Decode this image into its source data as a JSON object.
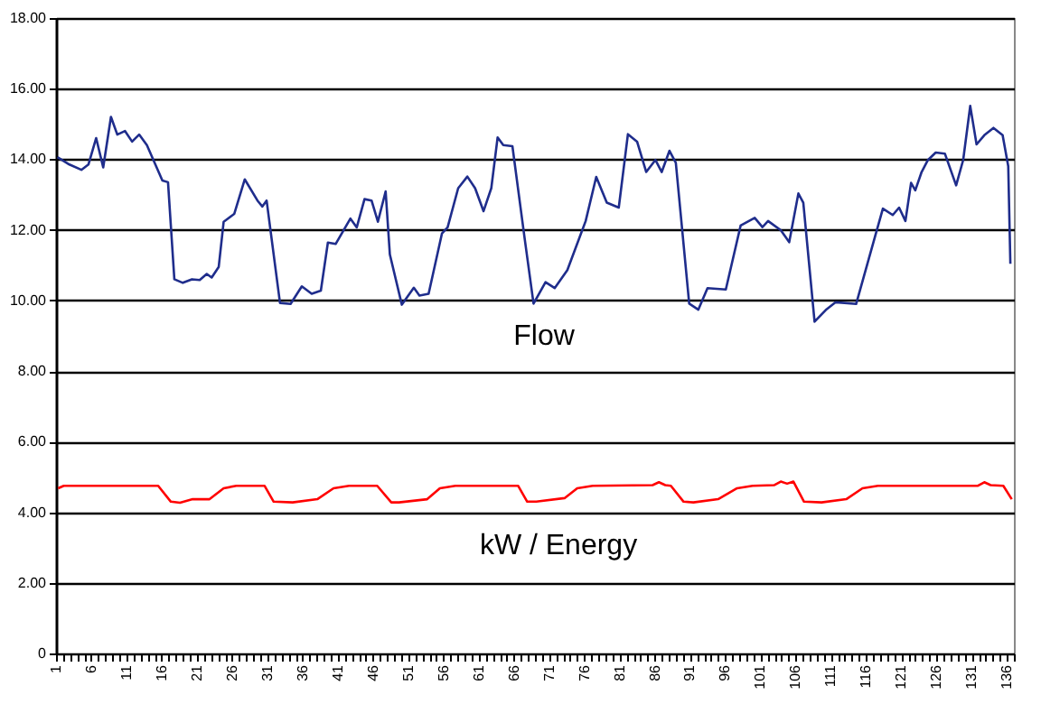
{
  "chart_data": {
    "type": "line",
    "series": [
      {
        "name": "Flow",
        "color": "#1f2d8c",
        "x": [
          1.2,
          2.9,
          4.6,
          5.6,
          6.7,
          7.7,
          8.8,
          9.7,
          10.8,
          11.8,
          12.8,
          13.9,
          16.1,
          16.9,
          17.8,
          19.0,
          20.3,
          21.4,
          22.4,
          23.1,
          24.1,
          24.8,
          26.3,
          27.8,
          29.6,
          30.3,
          30.9,
          32.8,
          34.3,
          35.9,
          37.3,
          38.6,
          39.6,
          40.7,
          42.8,
          43.7,
          44.8,
          45.8,
          46.7,
          47.8,
          48.4,
          50.1,
          51.8,
          52.6,
          53.9,
          55.8,
          56.6,
          58.1,
          59.4,
          60.5,
          61.7,
          62.8,
          63.7,
          64.5,
          65.8,
          67.5,
          68.8,
          70.5,
          71.8,
          73.6,
          76.2,
          77.7,
          79.2,
          80.9,
          82.2,
          83.5,
          84.8,
          86.1,
          87.0,
          88.1,
          89.0,
          90.9,
          92.2,
          93.5,
          96.1,
          98.2,
          100.2,
          101.3,
          102.1,
          103.9,
          105.1,
          106.4,
          107.1,
          108.7,
          110.4,
          111.7,
          114.6,
          117.3,
          118.4,
          119.8,
          120.7,
          121.6,
          122.4,
          123.0,
          123.9,
          124.8,
          125.9,
          127.2,
          128.8,
          129.8,
          130.8,
          131.7,
          132.8,
          134.1,
          135.4,
          136.2,
          136.5
        ],
        "values": [
          14.06,
          13.85,
          13.7,
          13.85,
          14.6,
          13.77,
          15.2,
          14.7,
          14.8,
          14.5,
          14.7,
          14.4,
          13.4,
          13.35,
          10.6,
          10.5,
          10.6,
          10.58,
          10.75,
          10.65,
          10.95,
          12.23,
          12.45,
          13.43,
          12.83,
          12.66,
          12.83,
          9.93,
          9.9,
          10.4,
          10.19,
          10.28,
          11.64,
          11.6,
          12.32,
          12.07,
          12.87,
          12.83,
          12.23,
          13.09,
          11.3,
          9.88,
          10.36,
          10.14,
          10.19,
          11.9,
          12.07,
          13.18,
          13.51,
          13.18,
          12.53,
          13.18,
          14.62,
          14.4,
          14.37,
          11.81,
          9.91,
          10.52,
          10.35,
          10.86,
          12.25,
          13.5,
          12.77,
          12.63,
          14.71,
          14.5,
          13.64,
          13.98,
          13.64,
          14.24,
          13.9,
          9.91,
          9.74,
          10.35,
          10.31,
          12.12,
          12.34,
          12.08,
          12.25,
          11.99,
          11.65,
          13.03,
          12.77,
          9.4,
          9.75,
          9.95,
          9.9,
          11.82,
          12.6,
          12.42,
          12.63,
          12.25,
          13.33,
          13.12,
          13.64,
          13.98,
          14.19,
          14.16,
          13.26,
          13.98,
          15.51,
          14.42,
          14.68,
          14.89,
          14.68,
          13.8,
          11.04
        ]
      },
      {
        "name": "kW / Energy",
        "color": "#ff0000",
        "x": [
          1.3,
          2.1,
          15.5,
          17.3,
          18.6,
          20.4,
          22.8,
          24.8,
          26.6,
          30.6,
          31.9,
          34.6,
          38.1,
          40.4,
          42.6,
          46.6,
          48.6,
          49.7,
          53.7,
          55.5,
          57.7,
          66.6,
          67.9,
          69.2,
          73.2,
          75.0,
          77.2,
          85.7,
          86.6,
          87.5,
          88.3,
          90.1,
          91.5,
          95.0,
          97.7,
          99.9,
          103.0,
          103.9,
          104.8,
          105.7,
          107.2,
          109.7,
          113.2,
          115.5,
          117.7,
          131.9,
          132.8,
          133.7,
          135.5,
          136.7
        ],
        "values": [
          4.68,
          4.75,
          4.75,
          4.3,
          4.27,
          4.37,
          4.37,
          4.68,
          4.75,
          4.75,
          4.3,
          4.28,
          4.37,
          4.68,
          4.75,
          4.75,
          4.28,
          4.28,
          4.37,
          4.68,
          4.75,
          4.75,
          4.3,
          4.3,
          4.4,
          4.68,
          4.75,
          4.77,
          4.85,
          4.77,
          4.75,
          4.3,
          4.28,
          4.37,
          4.68,
          4.75,
          4.77,
          4.87,
          4.81,
          4.87,
          4.3,
          4.28,
          4.37,
          4.68,
          4.75,
          4.75,
          4.85,
          4.77,
          4.75,
          4.37
        ]
      }
    ],
    "xlim": [
      1,
      137
    ],
    "xticks": [
      1,
      {
        "value": 2,
        "label": null
      },
      {
        "value": 3,
        "label": null
      },
      {
        "value": 4,
        "label": null
      },
      {
        "value": 5,
        "label": null
      },
      6,
      {
        "value": 7,
        "label": null
      },
      {
        "value": 8,
        "label": null
      },
      {
        "value": 9,
        "label": null
      },
      {
        "value": 10,
        "label": null
      },
      11,
      {
        "value": 12,
        "label": null
      },
      {
        "value": 13,
        "label": null
      },
      {
        "value": 14,
        "label": null
      },
      {
        "value": 15,
        "label": null
      },
      16,
      {
        "value": 17,
        "label": null
      },
      {
        "value": 18,
        "label": null
      },
      {
        "value": 19,
        "label": null
      },
      {
        "value": 20,
        "label": null
      },
      21,
      {
        "value": 22,
        "label": null
      },
      {
        "value": 23,
        "label": null
      },
      {
        "value": 24,
        "label": null
      },
      {
        "value": 25,
        "label": null
      },
      26,
      {
        "value": 27,
        "label": null
      },
      {
        "value": 28,
        "label": null
      },
      {
        "value": 29,
        "label": null
      },
      {
        "value": 30,
        "label": null
      },
      31,
      {
        "value": 32,
        "label": null
      },
      {
        "value": 33,
        "label": null
      },
      {
        "value": 34,
        "label": null
      },
      {
        "value": 35,
        "label": null
      },
      36,
      {
        "value": 37,
        "label": null
      },
      {
        "value": 38,
        "label": null
      },
      {
        "value": 39,
        "label": null
      },
      {
        "value": 40,
        "label": null
      },
      41,
      {
        "value": 42,
        "label": null
      },
      {
        "value": 43,
        "label": null
      },
      {
        "value": 44,
        "label": null
      },
      {
        "value": 45,
        "label": null
      },
      46,
      {
        "value": 47,
        "label": null
      },
      {
        "value": 48,
        "label": null
      },
      {
        "value": 49,
        "label": null
      },
      {
        "value": 50,
        "label": null
      },
      51,
      {
        "value": 52,
        "label": null
      },
      {
        "value": 53,
        "label": null
      },
      {
        "value": 54,
        "label": null
      },
      {
        "value": 55,
        "label": null
      },
      56,
      {
        "value": 57,
        "label": null
      },
      {
        "value": 58,
        "label": null
      },
      {
        "value": 59,
        "label": null
      },
      {
        "value": 60,
        "label": null
      },
      61,
      {
        "value": 62,
        "label": null
      },
      {
        "value": 63,
        "label": null
      },
      {
        "value": 64,
        "label": null
      },
      {
        "value": 65,
        "label": null
      },
      66,
      {
        "value": 67,
        "label": null
      },
      {
        "value": 68,
        "label": null
      },
      {
        "value": 69,
        "label": null
      },
      {
        "value": 70,
        "label": null
      },
      71,
      {
        "value": 72,
        "label": null
      },
      {
        "value": 73,
        "label": null
      },
      {
        "value": 74,
        "label": null
      },
      {
        "value": 75,
        "label": null
      },
      76,
      {
        "value": 77,
        "label": null
      },
      {
        "value": 78,
        "label": null
      },
      {
        "value": 79,
        "label": null
      },
      {
        "value": 80,
        "label": null
      },
      81,
      {
        "value": 82,
        "label": null
      },
      {
        "value": 83,
        "label": null
      },
      {
        "value": 84,
        "label": null
      },
      {
        "value": 85,
        "label": null
      },
      86,
      {
        "value": 87,
        "label": null
      },
      {
        "value": 88,
        "label": null
      },
      {
        "value": 89,
        "label": null
      },
      {
        "value": 90,
        "label": null
      },
      91,
      {
        "value": 92,
        "label": null
      },
      {
        "value": 93,
        "label": null
      },
      {
        "value": 94,
        "label": null
      },
      {
        "value": 95,
        "label": null
      },
      96,
      {
        "value": 97,
        "label": null
      },
      {
        "value": 98,
        "label": null
      },
      {
        "value": 99,
        "label": null
      },
      {
        "value": 100,
        "label": null
      },
      101,
      {
        "value": 102,
        "label": null
      },
      {
        "value": 103,
        "label": null
      },
      {
        "value": 104,
        "label": null
      },
      {
        "value": 105,
        "label": null
      },
      106,
      {
        "value": 107,
        "label": null
      },
      {
        "value": 108,
        "label": null
      },
      {
        "value": 109,
        "label": null
      },
      {
        "value": 110,
        "label": null
      },
      111,
      {
        "value": 112,
        "label": null
      },
      {
        "value": 113,
        "label": null
      },
      {
        "value": 114,
        "label": null
      },
      {
        "value": 115,
        "label": null
      },
      116,
      {
        "value": 117,
        "label": null
      },
      {
        "value": 118,
        "label": null
      },
      {
        "value": 119,
        "label": null
      },
      {
        "value": 120,
        "label": null
      },
      121,
      {
        "value": 122,
        "label": null
      },
      {
        "value": 123,
        "label": null
      },
      {
        "value": 124,
        "label": null
      },
      {
        "value": 125,
        "label": null
      },
      126,
      {
        "value": 127,
        "label": null
      },
      {
        "value": 128,
        "label": null
      },
      {
        "value": 129,
        "label": null
      },
      {
        "value": 130,
        "label": null
      },
      131,
      {
        "value": 132,
        "label": null
      },
      {
        "value": 133,
        "label": null
      },
      {
        "value": 134,
        "label": null
      },
      {
        "value": 135,
        "label": null
      },
      136,
      {
        "value": 137,
        "label": null
      }
    ],
    "ylim": [
      0,
      18
    ],
    "yticks": [
      0,
      {
        "value": 2,
        "label": "2.00"
      },
      {
        "value": 4,
        "label": "4.00"
      },
      {
        "value": 6,
        "label": "6.00"
      },
      {
        "value": 8,
        "label": "8.00"
      },
      {
        "value": 10,
        "label": "10.00"
      },
      {
        "value": 12,
        "label": "12.00"
      },
      {
        "value": 14,
        "label": "14.00"
      },
      {
        "value": 16,
        "label": "16.00"
      },
      {
        "value": 18,
        "label": "18.00"
      }
    ],
    "grid": "y",
    "legend": false,
    "marker": "none",
    "line_style": "solid"
  }
}
